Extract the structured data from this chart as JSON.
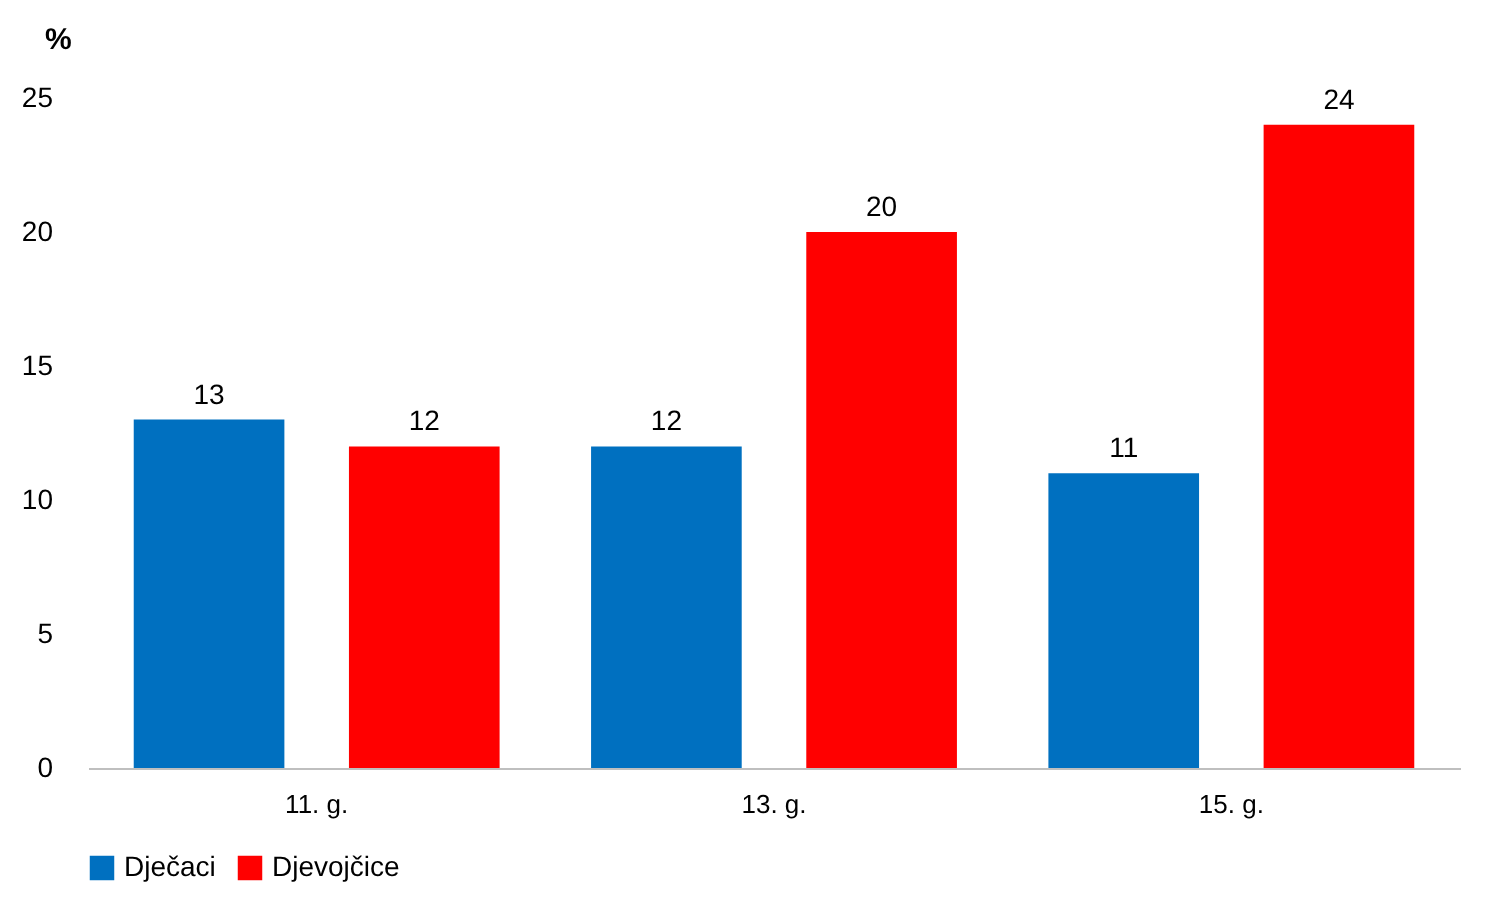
{
  "chart_data": {
    "type": "bar",
    "ylabel": "%",
    "categories": [
      "11. g.",
      "13. g.",
      "15. g."
    ],
    "series": [
      {
        "name": "Dječaci",
        "color": "#0070c0",
        "values": [
          13,
          12,
          11
        ]
      },
      {
        "name": "Djevojčice",
        "color": "#ff0000",
        "values": [
          12,
          20,
          24
        ]
      }
    ],
    "ylim": [
      0,
      25
    ],
    "yticks": [
      0,
      5,
      10,
      15,
      20,
      25
    ],
    "grid": false,
    "legend": "bottom",
    "data_labels": true
  }
}
